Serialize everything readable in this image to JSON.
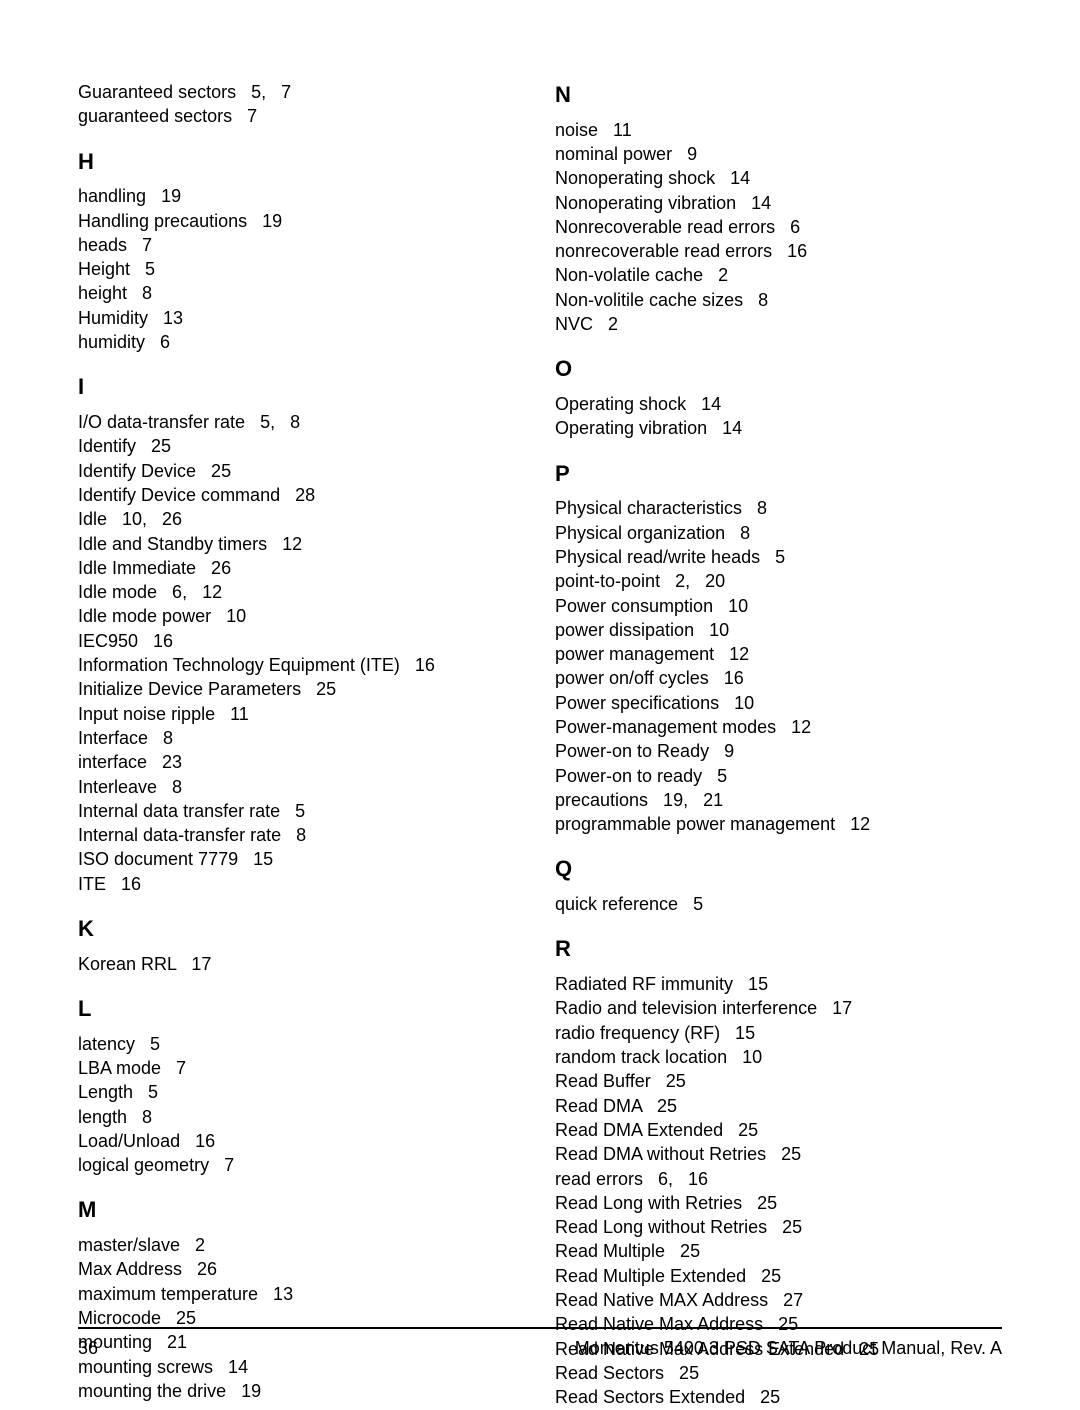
{
  "footer": {
    "page_number": "36",
    "doc_title": "Momentus 5400.3 PSD SATA Product Manual, Rev. A"
  },
  "left_col": {
    "pre": [
      "Guaranteed sectors   5,   7",
      "guaranteed sectors   7"
    ],
    "sections": [
      {
        "letter": "H",
        "entries": [
          "handling   19",
          "Handling precautions   19",
          "heads   7",
          "Height   5",
          "height   8",
          "Humidity   13",
          "humidity   6"
        ]
      },
      {
        "letter": "I",
        "entries": [
          "I/O data-transfer rate   5,   8",
          "Identify   25",
          "Identify Device   25",
          "Identify Device command   28",
          "Idle   10,   26",
          "Idle and Standby timers   12",
          "Idle Immediate   26",
          "Idle mode   6,   12",
          "Idle mode power   10",
          "IEC950   16",
          "Information Technology Equipment (ITE)   16",
          "Initialize Device Parameters   25",
          "Input noise ripple   11",
          "Interface   8",
          "interface   23",
          "Interleave   8",
          "Internal data transfer rate   5",
          "Internal data-transfer rate   8",
          "ISO document 7779   15",
          "ITE   16"
        ]
      },
      {
        "letter": "K",
        "entries": [
          "Korean RRL   17"
        ]
      },
      {
        "letter": "L",
        "entries": [
          "latency   5",
          "LBA mode   7",
          "Length   5",
          "length   8",
          "Load/Unload   16",
          "logical geometry   7"
        ]
      },
      {
        "letter": "M",
        "entries": [
          "master/slave   2",
          "Max Address   26",
          "maximum temperature   13",
          "Microcode   25",
          "mounting   21",
          "mounting screws   14",
          "mounting the drive   19"
        ]
      }
    ]
  },
  "right_col": {
    "sections": [
      {
        "letter": "N",
        "entries": [
          "noise   11",
          "nominal power   9",
          "Nonoperating shock   14",
          "Nonoperating vibration   14",
          "Nonrecoverable read errors   6",
          "nonrecoverable read errors   16",
          "Non-volatile cache   2",
          "Non-volitile cache sizes   8",
          "NVC   2"
        ]
      },
      {
        "letter": "O",
        "entries": [
          "Operating shock   14",
          "Operating vibration   14"
        ]
      },
      {
        "letter": "P",
        "entries": [
          "Physical characteristics   8",
          "Physical organization   8",
          "Physical read/write heads   5",
          "point-to-point   2,   20",
          "Power consumption   10",
          "power dissipation   10",
          "power management   12",
          "power on/off cycles   16",
          "Power specifications   10",
          "Power-management modes   12",
          "Power-on to Ready   9",
          "Power-on to ready   5",
          "precautions   19,   21",
          "programmable power management   12"
        ]
      },
      {
        "letter": "Q",
        "entries": [
          "quick reference   5"
        ]
      },
      {
        "letter": "R",
        "entries": [
          "Radiated RF immunity   15",
          "Radio and television interference   17",
          "radio frequency (RF)   15",
          "random track location   10",
          "Read Buffer   25",
          "Read DMA   25",
          "Read DMA Extended   25",
          "Read DMA without Retries   25",
          "read errors   6,   16",
          "Read Long with Retries   25",
          "Read Long without Retries   25",
          "Read Multiple   25",
          "Read Multiple Extended   25",
          "Read Native MAX Address   27",
          "Read Native Max Address   25",
          "Read Native Max Address Extended   25",
          "Read Sectors   25",
          "Read Sectors Extended   25"
        ]
      }
    ]
  }
}
